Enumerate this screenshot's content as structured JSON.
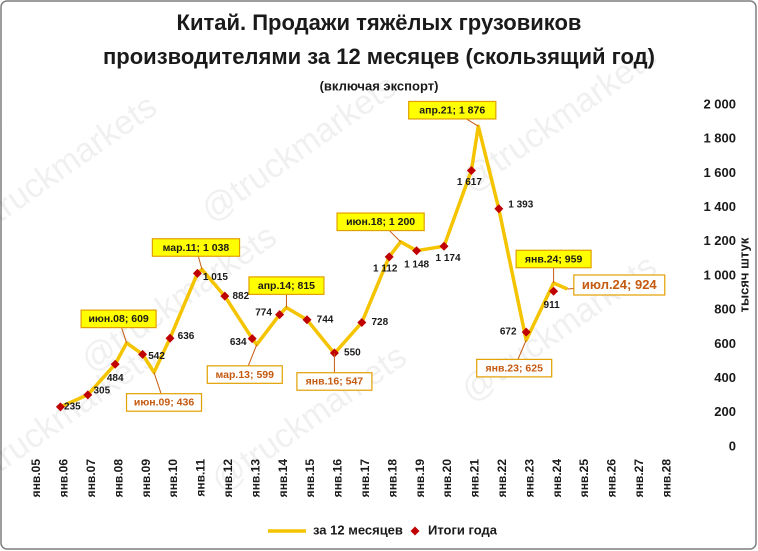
{
  "chart_data": {
    "type": "line",
    "title": "Китай. Продажи тяжёлых грузовиков",
    "title_line2": "производителями за 12 месяцев (скользящий год)",
    "subtitle": "(включая экспорт)",
    "watermark": "@truckmarkets",
    "y_label": "тысяч штук",
    "categories": [
      "янв.05",
      "янв.06",
      "янв.07",
      "янв.08",
      "янв.09",
      "янв.10",
      "янв.11",
      "янв.12",
      "янв.13",
      "янв.14",
      "янв.15",
      "янв.16",
      "янв.17",
      "янв.18",
      "янв.19",
      "янв.20",
      "янв.21",
      "янв.22",
      "янв.23",
      "янв.24",
      "янв.25",
      "янв.26",
      "янв.27",
      "янв.28"
    ],
    "ylim": [
      0,
      2000
    ],
    "yticks": [
      0,
      200,
      400,
      600,
      800,
      {
        "value": 1000,
        "label": "1 000"
      },
      {
        "value": 1200,
        "label": "1 200"
      },
      {
        "value": 1400,
        "label": "1 400"
      },
      {
        "value": 1600,
        "label": "1 600"
      },
      {
        "value": 1800,
        "label": "1 800"
      },
      {
        "value": 2000,
        "label": "2 000"
      }
    ],
    "y_axis_side": "right",
    "series": [
      {
        "name": "за 12 месяцев",
        "type": "line",
        "color": "#f5c400",
        "x": [
          "янв.06",
          "янв.07",
          "янв.08",
          "июн.08",
          "янв.09",
          "июн.09",
          "янв.10",
          "янв.11",
          "мар.11",
          "янв.12",
          "янв.13",
          "мар.13",
          "янв.14",
          "апр.14",
          "янв.15",
          "янв.16",
          "янв.17",
          "янв.18",
          "июн.18",
          "янв.19",
          "янв.20",
          "янв.21",
          "апр.21",
          "янв.22",
          "янв.23",
          "янв.24",
          "июл.24"
        ],
        "values": [
          235,
          305,
          484,
          609,
          542,
          436,
          636,
          1015,
          1038,
          882,
          634,
          599,
          774,
          815,
          744,
          547,
          728,
          1112,
          1200,
          1148,
          1174,
          1617,
          1876,
          1393,
          625,
          959,
          924
        ],
        "value_labels": [
          null,
          null,
          null,
          "июн.08; 609",
          null,
          "июн.09; 436",
          null,
          null,
          "мар.11; 1 038",
          null,
          null,
          "мар.13; 599",
          null,
          "апр.14; 815",
          null,
          "янв.16; 547",
          null,
          null,
          "июн.18; 1 200",
          null,
          null,
          null,
          "апр.21; 1 876",
          null,
          "янв.23; 625",
          "янв.24; 959",
          "июл.24; 924"
        ]
      },
      {
        "name": "Итоги года",
        "type": "scatter",
        "color": "#c00000",
        "x": [
          "янв.06",
          "янв.07",
          "янв.08",
          "янв.09",
          "янв.10",
          "янв.11",
          "янв.12",
          "янв.13",
          "янв.14",
          "янв.15",
          "янв.16",
          "янв.17",
          "янв.18",
          "янв.19",
          "янв.20",
          "янв.21",
          "янв.22",
          "янв.23",
          "янв.24"
        ],
        "values": [
          235,
          305,
          484,
          542,
          636,
          1015,
          882,
          634,
          774,
          744,
          550,
          728,
          1112,
          1148,
          1174,
          1617,
          1393,
          672,
          911
        ],
        "value_labels": [
          "235",
          "305",
          "484",
          "542",
          "636",
          "1 015",
          "882",
          "634",
          "774",
          "744",
          "550",
          "728",
          "1 112",
          "1 148",
          "1 174",
          "1 617",
          "1 393",
          "672",
          "911"
        ]
      }
    ]
  }
}
